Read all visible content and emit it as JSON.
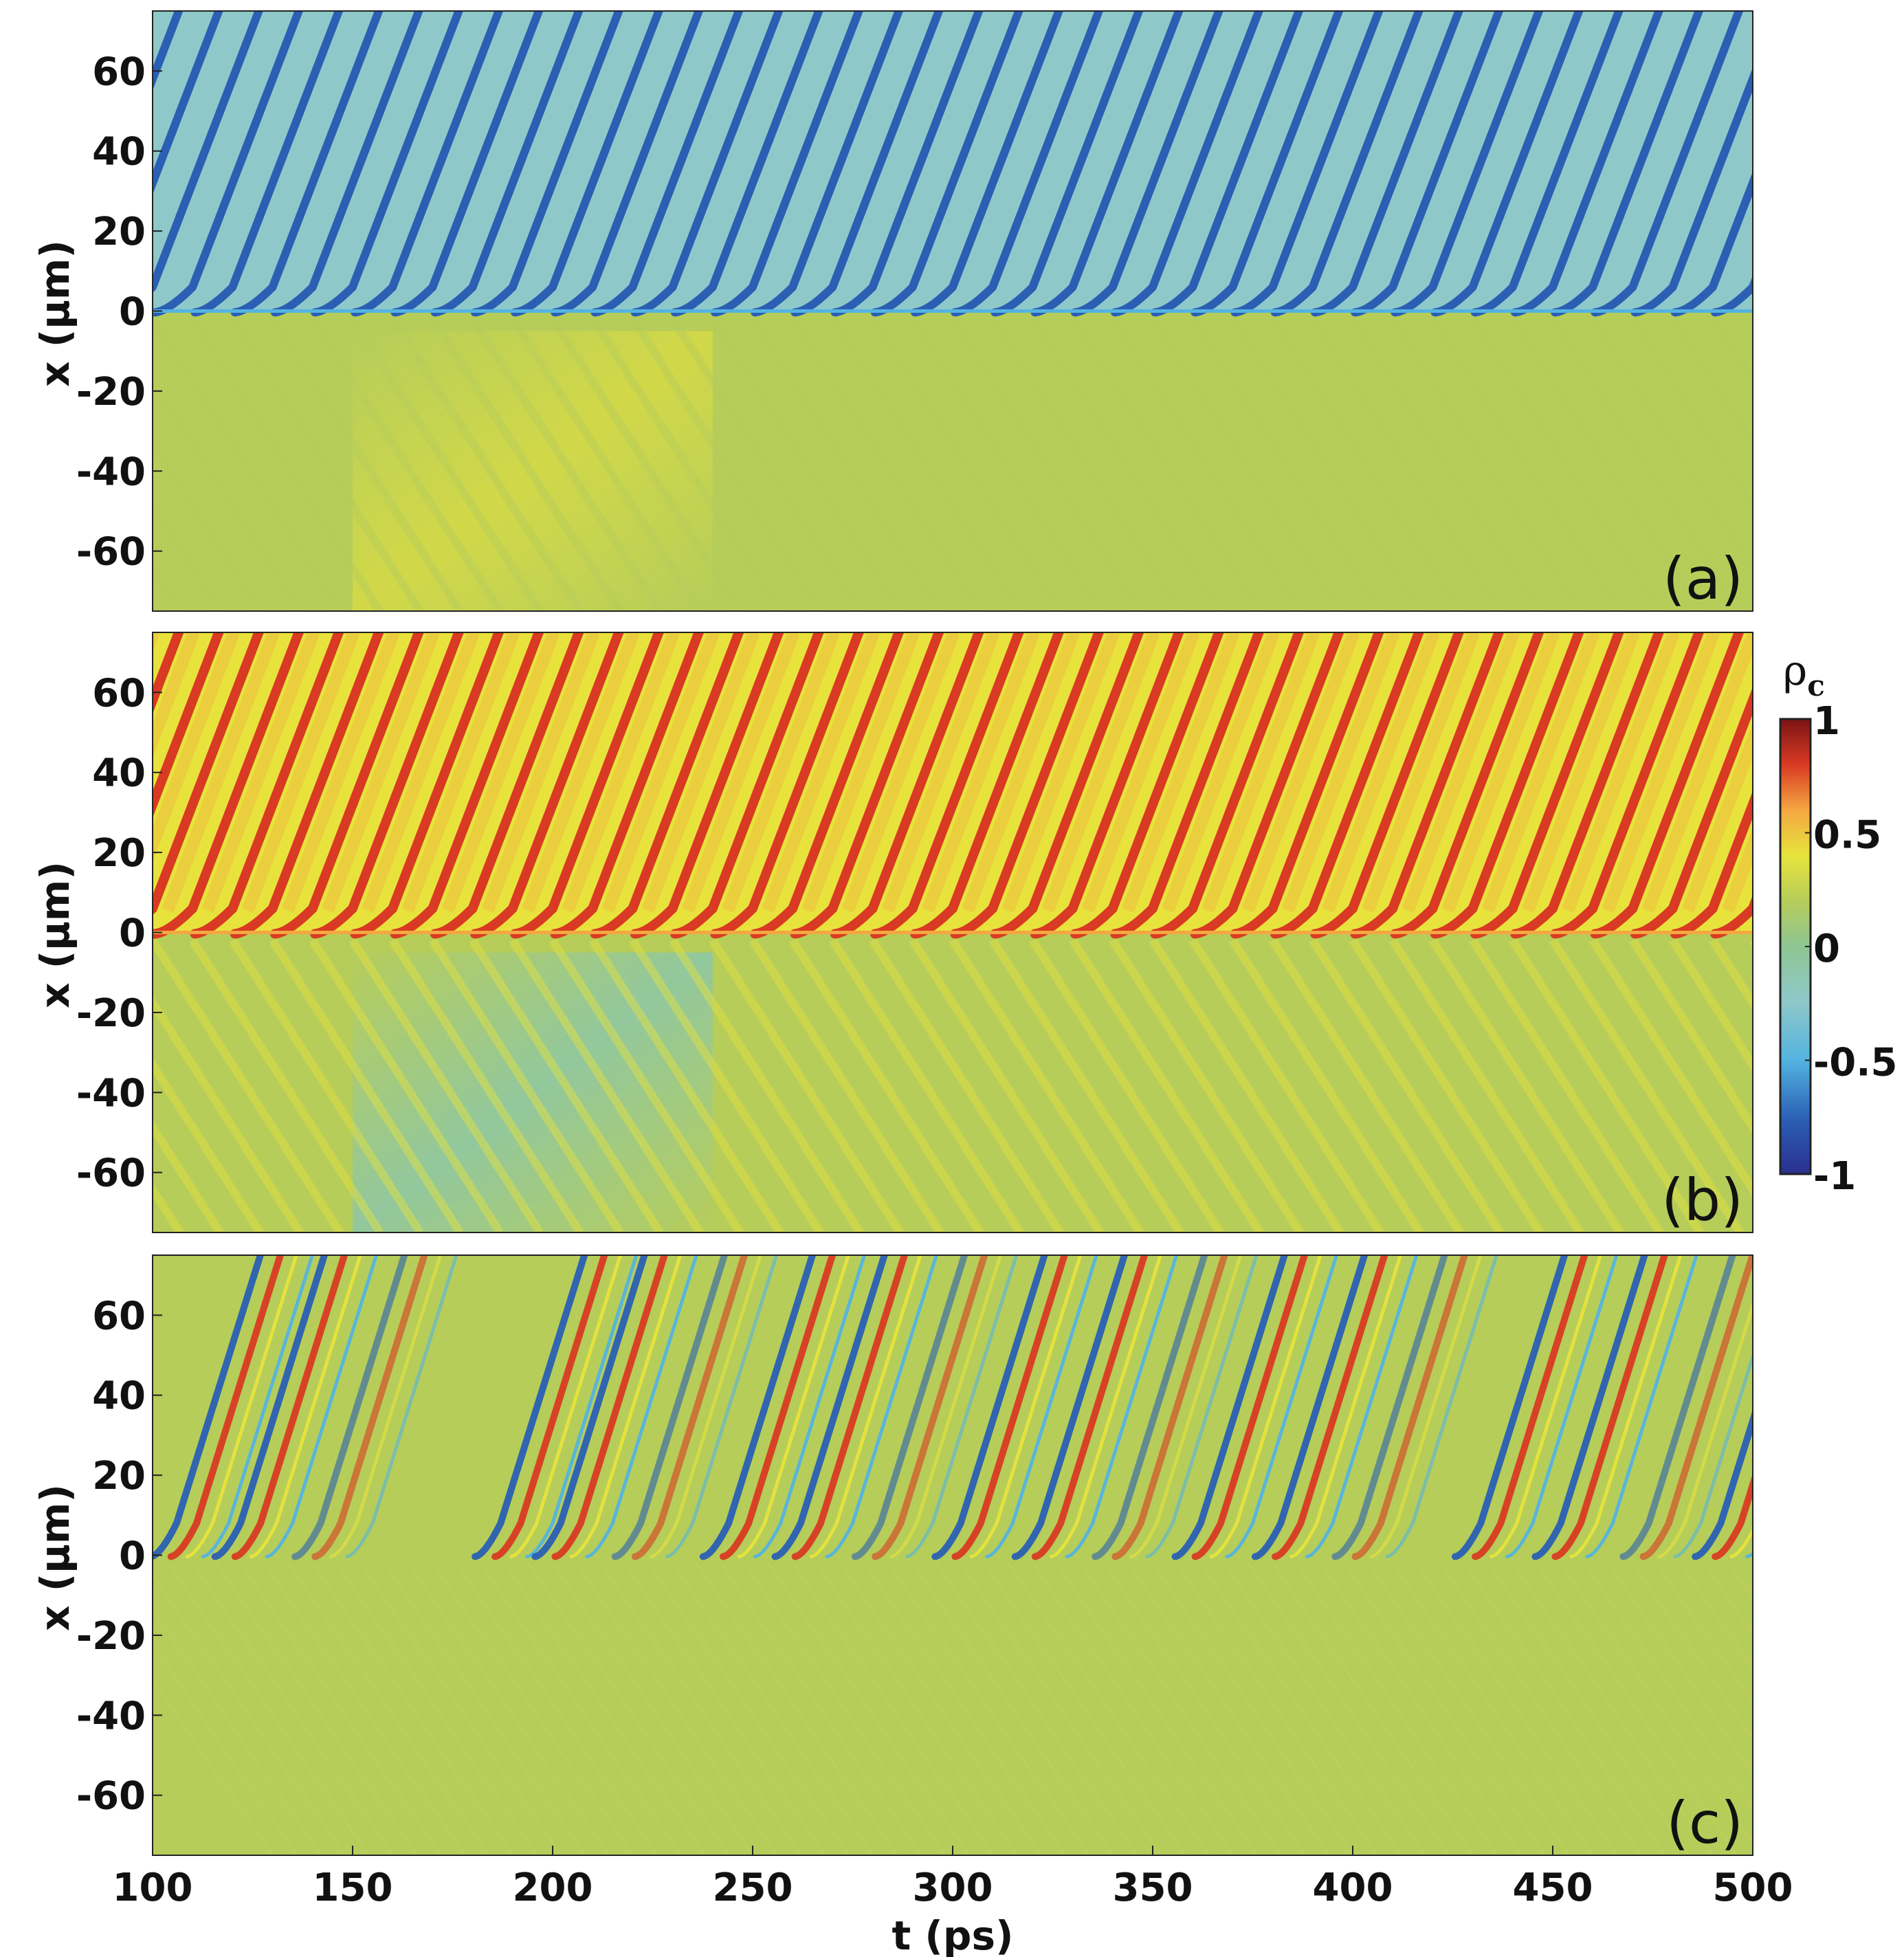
{
  "chart_data": [
    {
      "type": "heatmap",
      "panel_label": "(a)",
      "ylabel": "x (μm)",
      "xlim": [
        100,
        500
      ],
      "ylim": [
        -75,
        75
      ],
      "yticks": [
        -60,
        -40,
        -20,
        0,
        20,
        40,
        60
      ],
      "ytick_labels": [
        "-60",
        "-40",
        "-20",
        "0",
        "20",
        "40",
        "60"
      ],
      "colormap": "jet",
      "background_upper": -0.3,
      "background_lower": 0.0,
      "stripes_upper": {
        "value": -0.8,
        "period_ps": 10,
        "first_t": 104,
        "speed_um_per_ps": 2.6
      },
      "stripes_lower": {
        "value": 0.15,
        "period_ps": 10,
        "speed_um_per_ps": -1.6
      },
      "grid": false
    },
    {
      "type": "heatmap",
      "panel_label": "(b)",
      "ylabel": "x (μm)",
      "xlim": [
        100,
        500
      ],
      "ylim": [
        -75,
        75
      ],
      "yticks": [
        -60,
        -40,
        -20,
        0,
        20,
        40,
        60
      ],
      "ytick_labels": [
        "-60",
        "-40",
        "-20",
        "0",
        "20",
        "40",
        "60"
      ],
      "colormap": "jet",
      "background_upper": 0.3,
      "background_lower": 0.05,
      "stripes_upper": {
        "value": 0.85,
        "period_ps": 10,
        "first_t": 104,
        "speed_um_per_ps": 2.6
      },
      "stripes_lower": {
        "value": 0.25,
        "period_ps": 10,
        "speed_um_per_ps": -1.6
      },
      "grid": false
    },
    {
      "type": "heatmap",
      "panel_label": "(c)",
      "xlabel": "t (ps)",
      "ylabel": "x (μm)",
      "xlim": [
        100,
        500
      ],
      "ylim": [
        -75,
        75
      ],
      "xticks": [
        100,
        150,
        200,
        250,
        300,
        350,
        400,
        450,
        500
      ],
      "xtick_labels": [
        "100",
        "150",
        "200",
        "250",
        "300",
        "350",
        "400",
        "450",
        "500"
      ],
      "yticks": [
        -60,
        -40,
        -20,
        0,
        20,
        40,
        60
      ],
      "ytick_labels": [
        "-60",
        "-40",
        "-20",
        "0",
        "20",
        "40",
        "60"
      ],
      "colormap": "jet",
      "background": 0.02,
      "stripe_pairs_t0": [
        102,
        118,
        138,
        183,
        198,
        218,
        240,
        258,
        278,
        298,
        318,
        338,
        358,
        378,
        398,
        428,
        448,
        470,
        488
      ],
      "speed_um_per_ps": 3.2,
      "grid": false
    }
  ],
  "colorbar": {
    "title": "ρ",
    "title_sub": "c",
    "ticks": [
      1,
      0.5,
      0,
      -0.5,
      -1
    ],
    "tick_labels": [
      "1",
      "0.5",
      "0",
      "-0.5",
      "-1"
    ],
    "range": [
      -1,
      1
    ],
    "colors": [
      "#2b2f8f",
      "#2a5fb4",
      "#54b3e0",
      "#8fc8c9",
      "#8ec593",
      "#b6cd5a",
      "#e7e33c",
      "#f4a742",
      "#d93a23",
      "#7a1414"
    ]
  }
}
